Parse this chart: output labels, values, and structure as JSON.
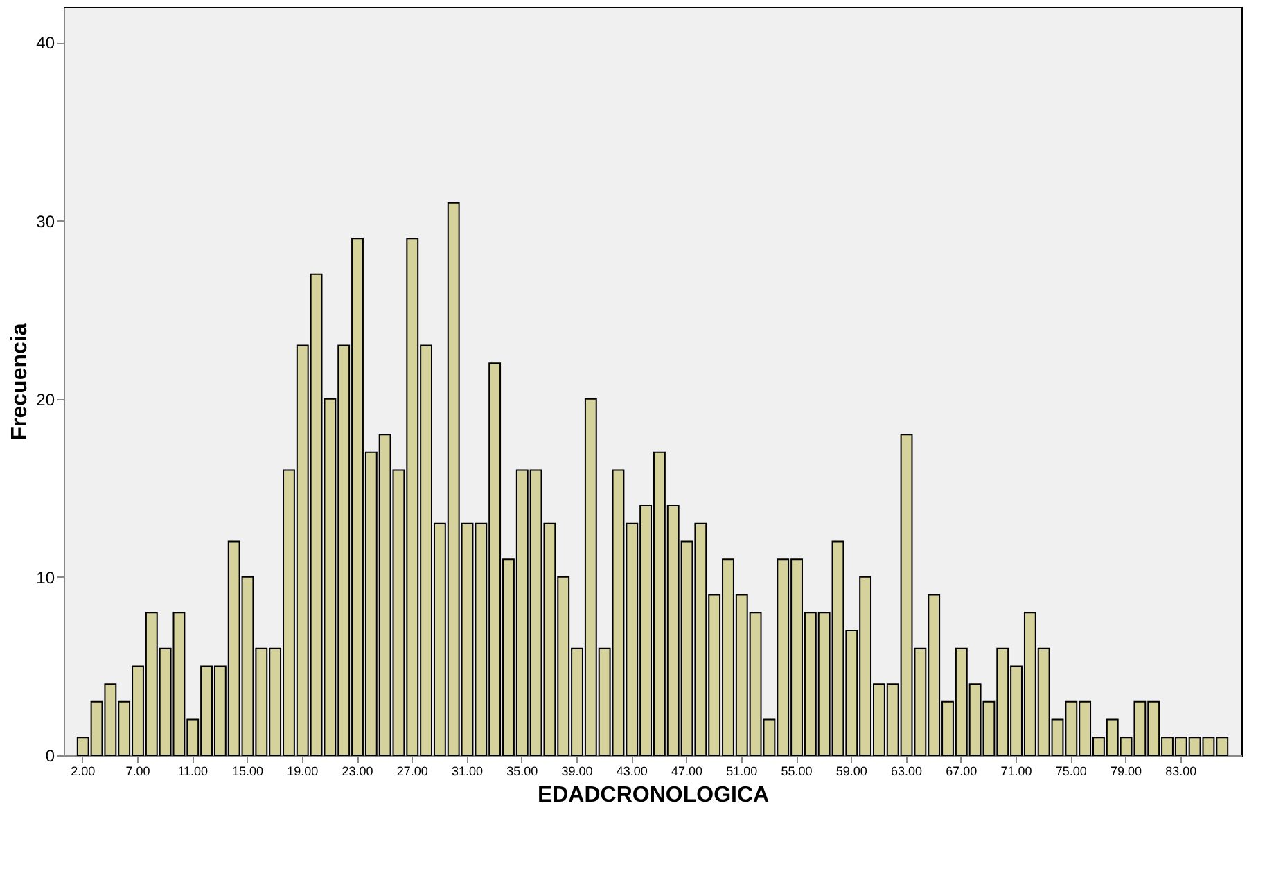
{
  "chart_data": {
    "type": "bar",
    "xlabel": "EDADCRONOLOGICA",
    "ylabel": "Frecuencia",
    "categories": [
      "2.00",
      null,
      null,
      null,
      "7.00",
      null,
      null,
      null,
      "11.00",
      null,
      null,
      null,
      "15.00",
      null,
      null,
      null,
      "19.00",
      null,
      null,
      null,
      "23.00",
      null,
      null,
      null,
      "27.00",
      null,
      null,
      null,
      "31.00",
      null,
      null,
      null,
      "35.00",
      null,
      null,
      null,
      "39.00",
      null,
      null,
      null,
      "43.00",
      null,
      null,
      null,
      "47.00",
      null,
      null,
      null,
      "51.00",
      null,
      null,
      null,
      "55.00",
      null,
      null,
      null,
      "59.00",
      null,
      null,
      null,
      "63.00",
      null,
      null,
      null,
      "67.00",
      null,
      null,
      null,
      "71.00",
      null,
      null,
      null,
      "75.00",
      null,
      null,
      null,
      "79.00",
      null,
      null,
      null,
      "83.00",
      null,
      null,
      null
    ],
    "values": [
      1,
      3,
      4,
      3,
      5,
      8,
      6,
      8,
      2,
      5,
      5,
      12,
      10,
      6,
      6,
      16,
      23,
      27,
      20,
      23,
      29,
      17,
      18,
      16,
      29,
      23,
      13,
      31,
      13,
      13,
      22,
      11,
      16,
      16,
      13,
      10,
      6,
      20,
      6,
      16,
      13,
      14,
      17,
      14,
      12,
      13,
      9,
      11,
      9,
      8,
      2,
      11,
      11,
      8,
      8,
      12,
      7,
      10,
      4,
      4,
      18,
      6,
      9,
      3,
      6,
      4,
      3,
      6,
      5,
      8,
      6,
      2,
      3,
      3,
      1,
      2,
      1,
      3,
      3,
      1,
      1,
      1,
      1,
      1
    ],
    "color": "#d6d29c",
    "ylim": [
      0,
      42
    ],
    "yticks": [
      0,
      10,
      20,
      30,
      40
    ],
    "grid": false
  }
}
